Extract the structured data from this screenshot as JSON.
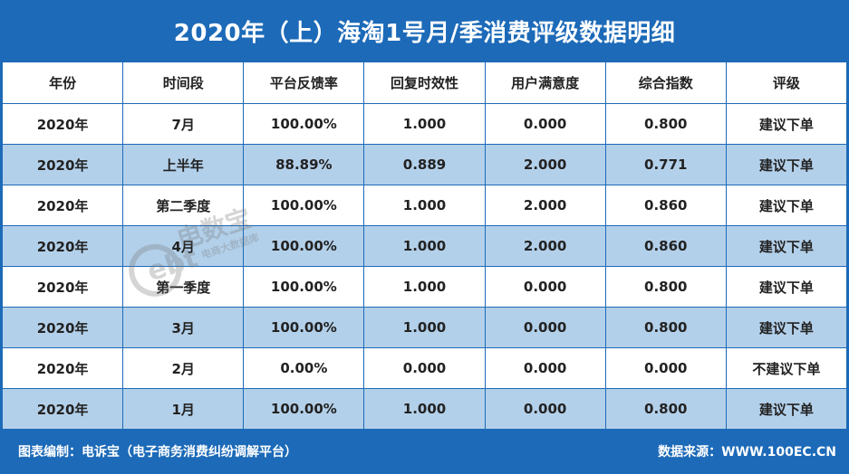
{
  "title": "2020年（上）海淘1号月/季消费评级数据明细",
  "table": {
    "headers": [
      "年份",
      "时间段",
      "平台反馈率",
      "回复时效性",
      "用户满意度",
      "综合指数",
      "评级"
    ],
    "rows": [
      [
        "2020年",
        "7月",
        "100.00%",
        "1.000",
        "0.000",
        "0.800",
        "建议下单"
      ],
      [
        "2020年",
        "上半年",
        "88.89%",
        "0.889",
        "2.000",
        "0.771",
        "建议下单"
      ],
      [
        "2020年",
        "第二季度",
        "100.00%",
        "1.000",
        "2.000",
        "0.860",
        "建议下单"
      ],
      [
        "2020年",
        "4月",
        "100.00%",
        "1.000",
        "2.000",
        "0.860",
        "建议下单"
      ],
      [
        "2020年",
        "第一季度",
        "100.00%",
        "1.000",
        "0.000",
        "0.800",
        "建议下单"
      ],
      [
        "2020年",
        "3月",
        "100.00%",
        "1.000",
        "0.000",
        "0.800",
        "建议下单"
      ],
      [
        "2020年",
        "2月",
        "0.00%",
        "0.000",
        "0.000",
        "0.000",
        "不建议下单"
      ],
      [
        "2020年",
        "1月",
        "100.00%",
        "1.000",
        "0.000",
        "0.800",
        "建议下单"
      ]
    ]
  },
  "footer": {
    "left": "图表编制：电诉宝（电子商务消费纠纷调解平台）",
    "right": "数据来源：WWW.100EC.CN"
  },
  "watermark": {
    "logo_text": "ebt",
    "brand": "电数宝",
    "sub": "电商大数据库"
  },
  "colors": {
    "brand_blue": "#1c6ab8",
    "alt_row": "#b3d0ea",
    "text": "#222222"
  }
}
